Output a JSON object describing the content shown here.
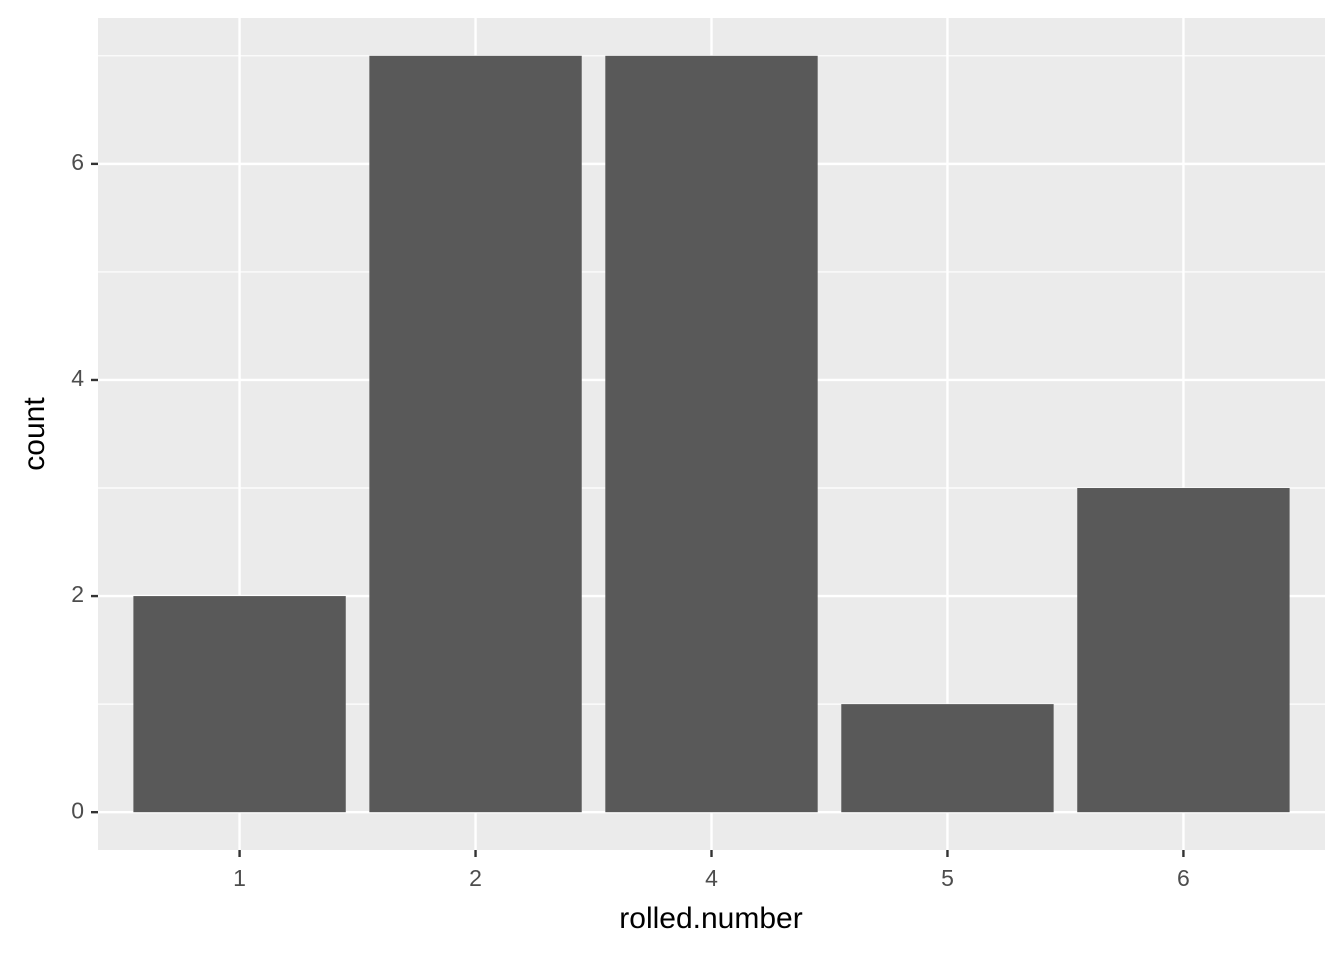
{
  "chart_data": {
    "type": "bar",
    "x_label": "rolled.number",
    "y_label": "count",
    "categories": [
      "1",
      "2",
      "4",
      "5",
      "6"
    ],
    "values": [
      2,
      7,
      7,
      1,
      3
    ],
    "color": "#595959",
    "ylim": [
      -0.35,
      7.35
    ],
    "yticks": [
      0,
      2,
      4,
      6
    ],
    "grid": true
  }
}
